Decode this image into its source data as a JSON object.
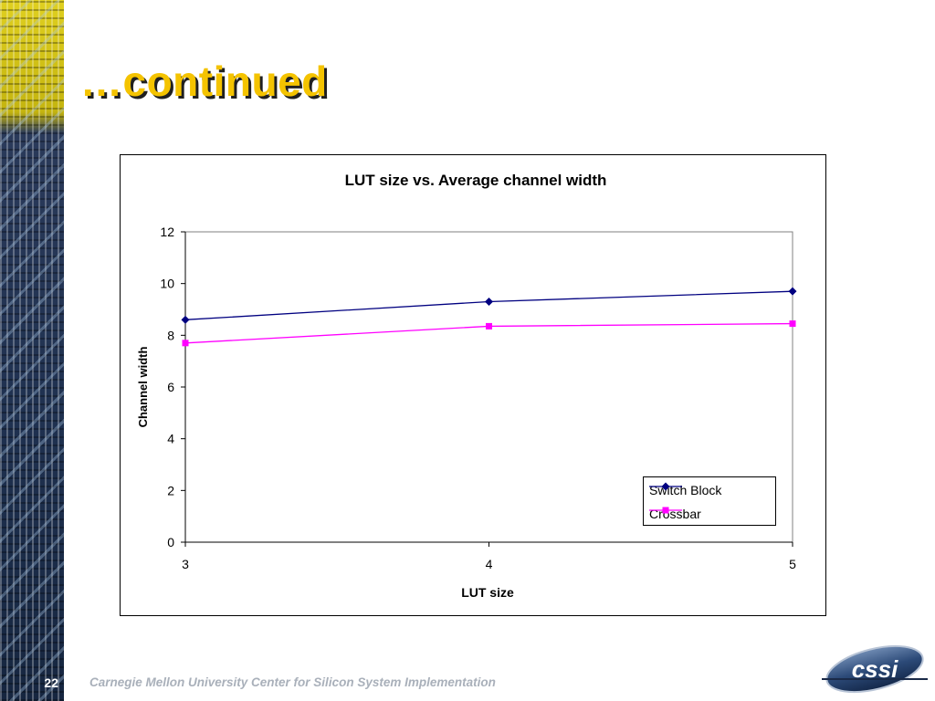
{
  "slide": {
    "title": "…continued",
    "page_number": "22",
    "footer": "Carnegie Mellon University Center for Silicon System Implementation",
    "logo_text": "cssi"
  },
  "colors": {
    "title": "#f4c300",
    "switch_block": "#000080",
    "crossbar": "#ff00ff"
  },
  "chart_data": {
    "type": "line",
    "title": "LUT size vs. Average channel width",
    "xlabel": "LUT size",
    "ylabel": "Channel width",
    "x": [
      3,
      4,
      5
    ],
    "xticks": [
      "3",
      "4",
      "5"
    ],
    "ylim": [
      0,
      12
    ],
    "yticks": [
      "0",
      "2",
      "4",
      "6",
      "8",
      "10",
      "12"
    ],
    "grid": false,
    "legend_position": "bottom-right",
    "series": [
      {
        "name": "Switch Block",
        "values": [
          8.6,
          9.3,
          9.7
        ],
        "marker": "diamond"
      },
      {
        "name": "Crossbar",
        "values": [
          7.7,
          8.35,
          8.45
        ],
        "marker": "square"
      }
    ]
  }
}
